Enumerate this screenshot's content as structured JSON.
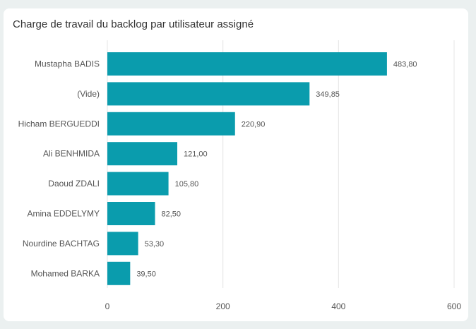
{
  "chart_data": {
    "type": "bar",
    "orientation": "horizontal",
    "title": "Charge de travail du backlog par utilisateur assigné",
    "categories": [
      "Mustapha BADIS",
      "(Vide)",
      "Hicham BERGUEDDI",
      "Ali BENHMIDA",
      "Daoud ZDALI",
      "Amina EDDELYMY",
      "Nourdine BACHTAG",
      "Mohamed BARKA"
    ],
    "values": [
      483.8,
      349.85,
      220.9,
      121.0,
      105.8,
      82.5,
      53.3,
      39.5
    ],
    "value_labels": [
      "483,80",
      "349,85",
      "220,90",
      "121,00",
      "105,80",
      "82,50",
      "53,30",
      "39,50"
    ],
    "xticks": [
      0,
      200,
      400,
      600
    ],
    "xlim": [
      0,
      600
    ],
    "grid": true,
    "bar_color": "#0a9cad"
  }
}
